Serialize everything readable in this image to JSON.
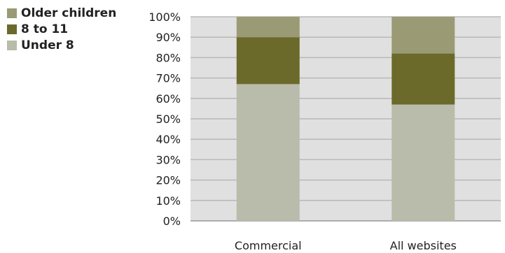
{
  "chart_data": {
    "type": "bar",
    "stacked": true,
    "categories": [
      "Commercial",
      "All websites"
    ],
    "series": [
      {
        "name": "Under 8",
        "values": [
          67,
          57
        ],
        "color": "#b9bcaa"
      },
      {
        "name": "8 to 11",
        "values": [
          23,
          25
        ],
        "color": "#6b6a2b"
      },
      {
        "name": "Older children",
        "values": [
          10,
          18
        ],
        "color": "#9a9b75"
      }
    ],
    "legend_order": [
      "Older children",
      "8 to 11",
      "Under 8"
    ],
    "ylim": [
      0,
      100
    ],
    "yticks": [
      0,
      10,
      20,
      30,
      40,
      50,
      60,
      70,
      80,
      90,
      100
    ],
    "ytick_labels": [
      "0%",
      "10%",
      "20%",
      "30%",
      "40%",
      "50%",
      "60%",
      "70%",
      "80%",
      "90%",
      "100%"
    ],
    "grid": true,
    "legend_position": "top-left",
    "plot_background": "#e0e0e0"
  }
}
